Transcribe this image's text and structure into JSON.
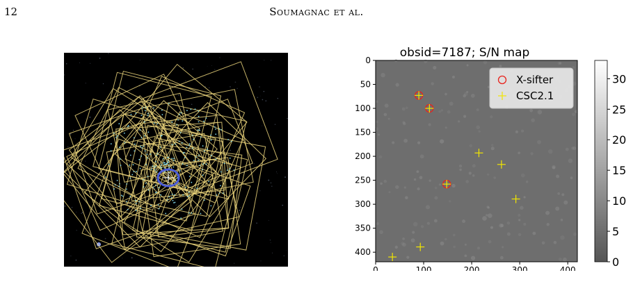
{
  "header": {
    "page_number": "12",
    "running_head": "Soumagnac et al."
  },
  "sky_image": {
    "footprint_color": "#e9d27a",
    "source_color": "#7fd3e6",
    "circle_color": "#4a5bd6"
  },
  "chart_data": {
    "type": "scatter",
    "title": "obsid=7187; S/N map",
    "xlabel": "",
    "ylabel": "",
    "xlim": [
      0,
      420
    ],
    "ylim": [
      420,
      0
    ],
    "x_ticks": [
      0,
      100,
      200,
      300,
      400
    ],
    "y_ticks": [
      0,
      50,
      100,
      150,
      200,
      250,
      300,
      350,
      400
    ],
    "legend_position": "top-right",
    "series": [
      {
        "name": "X-sifter",
        "marker": "circle",
        "color": "#e8221c",
        "points": [
          [
            90,
            73
          ],
          [
            112,
            100
          ],
          [
            148,
            258
          ]
        ]
      },
      {
        "name": "CSC2.1",
        "marker": "plus",
        "color": "#f2e600",
        "points": [
          [
            90,
            73
          ],
          [
            112,
            100
          ],
          [
            148,
            258
          ],
          [
            215,
            193
          ],
          [
            262,
            217
          ],
          [
            292,
            289
          ],
          [
            93,
            389
          ],
          [
            35,
            410
          ]
        ]
      }
    ],
    "colorbar": {
      "min": 0,
      "max": 33,
      "ticks": [
        0,
        5,
        10,
        15,
        20,
        25,
        30
      ],
      "cmap": "gray"
    }
  }
}
